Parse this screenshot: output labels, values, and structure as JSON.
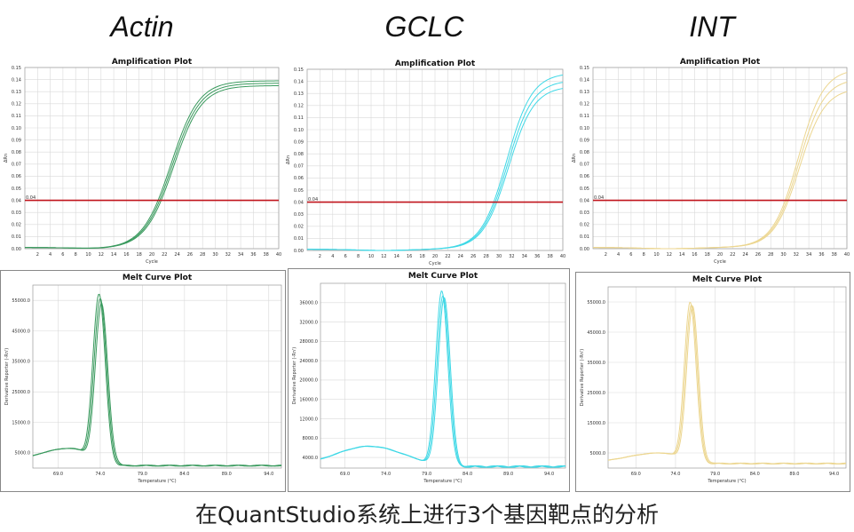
{
  "figure": {
    "caption": "在QuantStudio系统上进行3个基因靶点的分析"
  },
  "colors": {
    "actin": "#3a9a5e",
    "gclc": "#3fd8e6",
    "int": "#ecd690",
    "threshold": "#c0141c",
    "grid": "#d9d9d9"
  },
  "genes": [
    {
      "name": "Actin"
    },
    {
      "name": "GCLC"
    },
    {
      "name": "INT"
    }
  ],
  "chart_data": [
    {
      "type": "line",
      "gene": "Actin",
      "title": "Amplification Plot",
      "xlabel": "Cycle",
      "ylabel": "ΔRn",
      "xlim": [
        0,
        40
      ],
      "ylim": [
        0,
        0.15
      ],
      "x_ticks": [
        "2",
        "4",
        "6",
        "8",
        "10",
        "12",
        "14",
        "16",
        "18",
        "20",
        "22",
        "24",
        "26",
        "28",
        "30",
        "32",
        "34",
        "36",
        "38",
        "40"
      ],
      "y_ticks": [
        "0.00",
        "0.01",
        "0.02",
        "0.03",
        "0.04",
        "0.05",
        "0.06",
        "0.07",
        "0.08",
        "0.09",
        "0.10",
        "0.11",
        "0.12",
        "0.13",
        "0.14",
        "0.15"
      ],
      "threshold": 0.04,
      "threshold_label": "0.04",
      "curve_model": {
        "baseline": 0.001,
        "dip": -0.001,
        "ct": 21.3,
        "slope": 2.2
      },
      "series_plateaus": [
        0.138,
        0.136,
        0.134
      ]
    },
    {
      "type": "line",
      "gene": "GCLC",
      "title": "Amplification Plot",
      "xlabel": "Cycle",
      "ylabel": "ΔRn",
      "xlim": [
        0,
        40
      ],
      "ylim": [
        0,
        0.15
      ],
      "x_ticks": [
        "2",
        "4",
        "6",
        "8",
        "10",
        "12",
        "14",
        "16",
        "18",
        "20",
        "22",
        "24",
        "26",
        "28",
        "30",
        "32",
        "34",
        "36",
        "38",
        "40"
      ],
      "y_ticks": [
        "0.00",
        "0.01",
        "0.02",
        "0.03",
        "0.04",
        "0.05",
        "0.06",
        "0.07",
        "0.08",
        "0.09",
        "0.10",
        "0.11",
        "0.12",
        "0.13",
        "0.14",
        "0.15"
      ],
      "threshold": 0.04,
      "threshold_label": "0.04",
      "curve_model": {
        "baseline": 0.001,
        "dip": -0.001,
        "ct": 29.5,
        "slope": 2.0
      },
      "series_plateaus": [
        0.146,
        0.14,
        0.135
      ]
    },
    {
      "type": "line",
      "gene": "INT",
      "title": "Amplification Plot",
      "xlabel": "Cycle",
      "ylabel": "ΔRn",
      "xlim": [
        0,
        40
      ],
      "ylim": [
        0,
        0.15
      ],
      "x_ticks": [
        "2",
        "4",
        "6",
        "8",
        "10",
        "12",
        "14",
        "16",
        "18",
        "20",
        "22",
        "24",
        "26",
        "28",
        "30",
        "32",
        "34",
        "36",
        "38",
        "40"
      ],
      "y_ticks": [
        "0.00",
        "0.01",
        "0.02",
        "0.03",
        "0.04",
        "0.05",
        "0.06",
        "0.07",
        "0.08",
        "0.09",
        "0.10",
        "0.11",
        "0.12",
        "0.13",
        "0.14",
        "0.15"
      ],
      "threshold": 0.04,
      "threshold_label": "0.04",
      "curve_model": {
        "baseline": 0.001,
        "dip": -0.001,
        "ct": 30.6,
        "slope": 2.0
      },
      "series_plateaus": [
        0.148,
        0.14,
        0.132
      ]
    },
    {
      "type": "line",
      "gene": "Actin",
      "title": "Melt Curve Plot",
      "xlabel": "Temperature (°C)",
      "ylabel": "Derivative Reporter (-Rn')",
      "xlim": [
        66,
        85
      ],
      "ylim": [
        0,
        60000
      ],
      "x_ticks": [
        "69.0",
        "74.0",
        "79.0",
        "84.0",
        "89.0",
        "94.0"
      ],
      "x_tick_values": [
        69,
        74,
        79,
        84,
        89,
        94
      ],
      "display_xlim": [
        66,
        95.5
      ],
      "y_ticks": [
        "5000.0",
        "15000.0",
        "25000.0",
        "35000.0",
        "45000.0",
        "55000.0"
      ],
      "y_tick_values": [
        5000,
        15000,
        25000,
        35000,
        45000,
        55000
      ],
      "display_ylim": [
        0,
        60000
      ],
      "peak_x": 74.0,
      "peak_values": [
        57000,
        55500,
        54000
      ],
      "shoulder": {
        "x": 70.5,
        "y": 6500
      },
      "tail": 800
    },
    {
      "type": "line",
      "gene": "GCLC",
      "title": "Melt Curve Plot",
      "xlabel": "Temperature (°C)",
      "ylabel": "Derivative Reporter (-Rn')",
      "x_ticks": [
        "69.0",
        "74.0",
        "79.0",
        "84.0",
        "89.0",
        "94.0"
      ],
      "x_tick_values": [
        69,
        74,
        79,
        84,
        89,
        94
      ],
      "display_xlim": [
        66,
        96
      ],
      "y_ticks": [
        "4000.0",
        "8000.0",
        "12000.0",
        "16000.0",
        "20000.0",
        "24000.0",
        "28000.0",
        "32000.0",
        "36000.0"
      ],
      "y_tick_values": [
        4000,
        8000,
        12000,
        16000,
        20000,
        24000,
        28000,
        32000,
        36000
      ],
      "display_ylim": [
        1800,
        40000
      ],
      "peak_x": 81.0,
      "peak_values": [
        38500,
        37500,
        37000
      ],
      "shoulder": {
        "x": 72,
        "y": 6300
      },
      "tail": 2100
    },
    {
      "type": "line",
      "gene": "INT",
      "title": "Melt Curve Plot",
      "xlabel": "Temperature (°C)",
      "ylabel": "Derivative Reporter (-Rn')",
      "x_ticks": [
        "69.0",
        "74.0",
        "79.0",
        "84.0",
        "89.0",
        "94.0"
      ],
      "x_tick_values": [
        69,
        74,
        79,
        84,
        89,
        94
      ],
      "display_xlim": [
        65.5,
        95.5
      ],
      "y_ticks": [
        "5000.0",
        "15000.0",
        "25000.0",
        "35000.0",
        "45000.0",
        "55000.0"
      ],
      "y_tick_values": [
        5000,
        15000,
        25000,
        35000,
        45000,
        55000
      ],
      "display_ylim": [
        0,
        60000
      ],
      "peak_x": 76.0,
      "peak_values": [
        55000,
        54000,
        53500
      ],
      "shoulder": {
        "x": 72,
        "y": 5000
      },
      "tail": 1500
    }
  ]
}
